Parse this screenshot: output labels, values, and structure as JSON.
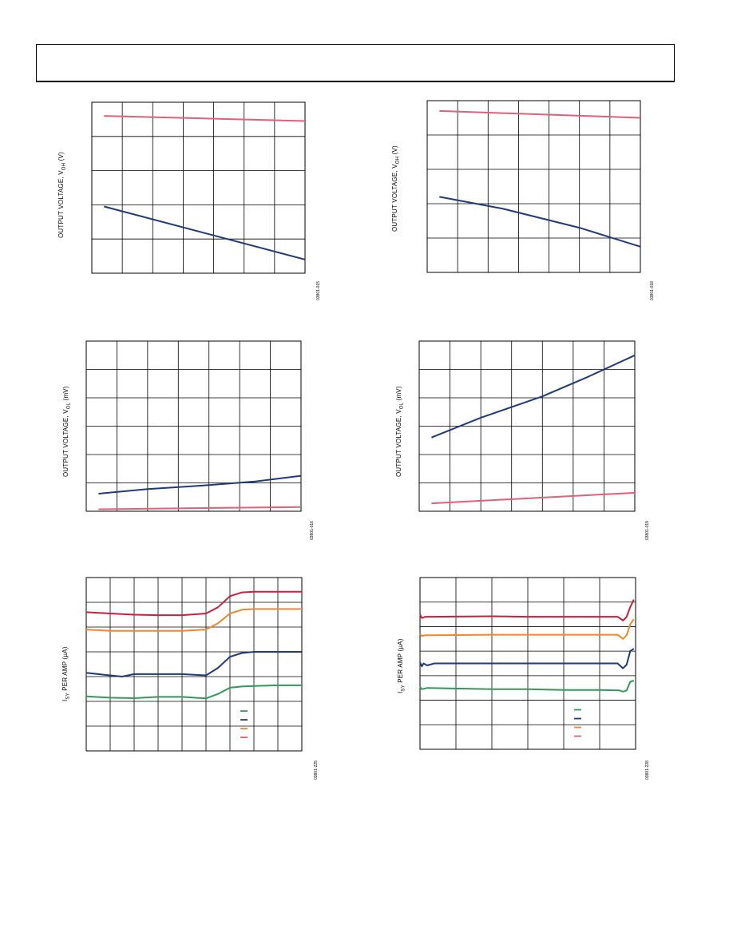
{
  "chart_data": [
    {
      "id": "c1",
      "type": "line",
      "ylabel_main": "OUTPUT VOLTAGE, V",
      "ylabel_sub": "OH",
      "ylabel_unit": " (V)",
      "fig_id": "03801-015",
      "ylim": [
        0,
        5
      ],
      "xlim": [
        0,
        7
      ],
      "grid": true,
      "vgrid": 7,
      "hgrid": 5,
      "series": [
        {
          "color": "#e0607a",
          "x": [
            0.4,
            7
          ],
          "y": [
            4.6,
            4.45
          ]
        },
        {
          "color": "#1f3a7a",
          "x": [
            0.4,
            7
          ],
          "y": [
            1.95,
            0.4
          ]
        }
      ]
    },
    {
      "id": "c2",
      "type": "line",
      "ylabel_main": "OUTPUT VOLTAGE, V",
      "ylabel_sub": "OH",
      "ylabel_unit": " (V)",
      "fig_id": "03801-018",
      "ylim": [
        0,
        5
      ],
      "xlim": [
        0,
        7
      ],
      "grid": true,
      "vgrid": 7,
      "hgrid": 5,
      "series": [
        {
          "color": "#e0607a",
          "x": [
            0.4,
            7
          ],
          "y": [
            4.7,
            4.5
          ]
        },
        {
          "color": "#1f3a7a",
          "x": [
            0.4,
            2.5,
            5,
            7
          ],
          "y": [
            2.2,
            1.85,
            1.3,
            0.75
          ]
        }
      ]
    },
    {
      "id": "c3",
      "type": "line",
      "ylabel_main": "OUTPUT VOLTAGE, V",
      "ylabel_sub": "OL",
      "ylabel_unit": " (mV)",
      "fig_id": "03801-016",
      "ylim": [
        0,
        6
      ],
      "xlim": [
        0,
        7
      ],
      "grid": true,
      "vgrid": 7,
      "hgrid": 6,
      "series": [
        {
          "color": "#e0607a",
          "x": [
            0.4,
            7
          ],
          "y": [
            0.07,
            0.15
          ]
        },
        {
          "color": "#1f3a7a",
          "x": [
            0.4,
            2,
            4,
            5.5,
            7
          ],
          "y": [
            0.62,
            0.78,
            0.92,
            1.05,
            1.25
          ]
        }
      ]
    },
    {
      "id": "c4",
      "type": "line",
      "ylabel_main": "OUTPUT VOLTAGE, V",
      "ylabel_sub": "OL",
      "ylabel_unit": " (mV)",
      "fig_id": "03801-019",
      "ylim": [
        0,
        6
      ],
      "xlim": [
        0,
        7
      ],
      "grid": true,
      "vgrid": 7,
      "hgrid": 6,
      "series": [
        {
          "color": "#e0607a",
          "x": [
            0.4,
            7
          ],
          "y": [
            0.28,
            0.65
          ]
        },
        {
          "color": "#1f3a7a",
          "x": [
            0.4,
            2,
            4,
            5.5,
            7
          ],
          "y": [
            2.6,
            3.3,
            4.05,
            4.75,
            5.5
          ]
        }
      ]
    },
    {
      "id": "c5",
      "type": "line",
      "ylabel_main": "I",
      "ylabel_sub": "SY",
      "ylabel_unit": " PER AMP (µA)",
      "fig_id": "03801-225",
      "ylim": [
        0,
        7
      ],
      "xlim": [
        0,
        9
      ],
      "grid": true,
      "vgrid": 9,
      "hgrid": 7,
      "series": [
        {
          "color": "#c8203c",
          "x": [
            0,
            1,
            2,
            3,
            4,
            5,
            5.5,
            6,
            6.5,
            7,
            8,
            9
          ],
          "y": [
            5.6,
            5.55,
            5.5,
            5.48,
            5.48,
            5.55,
            5.8,
            6.25,
            6.4,
            6.43,
            6.43,
            6.43
          ]
        },
        {
          "color": "#f0882a",
          "x": [
            0,
            1,
            2,
            3,
            4,
            5,
            5.5,
            6,
            6.5,
            7,
            8,
            9
          ],
          "y": [
            4.9,
            4.85,
            4.85,
            4.85,
            4.85,
            4.9,
            5.15,
            5.55,
            5.7,
            5.73,
            5.73,
            5.73
          ]
        },
        {
          "color": "#1f3a7a",
          "x": [
            0,
            1,
            1.5,
            2,
            3,
            4,
            5,
            5.5,
            6,
            6.5,
            7,
            8,
            9
          ],
          "y": [
            3.15,
            3.05,
            3.0,
            3.1,
            3.1,
            3.1,
            3.05,
            3.35,
            3.8,
            3.95,
            4.0,
            4.0,
            4.0
          ]
        },
        {
          "color": "#2f9a5a",
          "x": [
            0,
            1,
            2,
            3,
            4,
            5,
            5.5,
            6,
            6.5,
            7,
            8,
            9
          ],
          "y": [
            2.2,
            2.15,
            2.13,
            2.18,
            2.18,
            2.12,
            2.3,
            2.55,
            2.6,
            2.62,
            2.65,
            2.65
          ]
        }
      ],
      "legend": {
        "placement": "bottom-right",
        "colors": [
          "#2f9a5a",
          "#1f3a7a",
          "#f0882a",
          "#e0607a"
        ]
      }
    },
    {
      "id": "c6",
      "type": "line",
      "ylabel_main": "I",
      "ylabel_sub": "SY",
      "ylabel_unit": " PER AMP (µA)",
      "fig_id": "03801-228",
      "ylim": [
        0,
        7
      ],
      "xlim": [
        0,
        6
      ],
      "grid": true,
      "vgrid": 6,
      "hgrid": 7,
      "series": [
        {
          "color": "#c8203c",
          "x": [
            0,
            0.05,
            0.15,
            0.3,
            2,
            3,
            4,
            5,
            5.5,
            5.65,
            5.75,
            5.85,
            5.95
          ],
          "y": [
            5.5,
            5.35,
            5.4,
            5.4,
            5.42,
            5.4,
            5.4,
            5.4,
            5.4,
            5.25,
            5.4,
            5.8,
            6.1
          ]
        },
        {
          "color": "#f0882a",
          "x": [
            0,
            0.05,
            0.15,
            0.3,
            2,
            3,
            4,
            5,
            5.5,
            5.65,
            5.75,
            5.85,
            5.95
          ],
          "y": [
            4.7,
            4.62,
            4.65,
            4.65,
            4.67,
            4.67,
            4.67,
            4.67,
            4.67,
            4.5,
            4.65,
            5.1,
            5.3
          ]
        },
        {
          "color": "#1f3a7a",
          "x": [
            0,
            0.05,
            0.1,
            0.2,
            0.4,
            2,
            3,
            4,
            5,
            5.5,
            5.65,
            5.75,
            5.85,
            5.95
          ],
          "y": [
            3.55,
            3.38,
            3.5,
            3.42,
            3.5,
            3.5,
            3.5,
            3.5,
            3.5,
            3.5,
            3.3,
            3.45,
            4.0,
            4.1
          ]
        },
        {
          "color": "#2f9a5a",
          "x": [
            0,
            0.05,
            0.2,
            2,
            3,
            4,
            5,
            5.55,
            5.65,
            5.75,
            5.85,
            5.95
          ],
          "y": [
            2.55,
            2.45,
            2.5,
            2.45,
            2.45,
            2.42,
            2.42,
            2.4,
            2.35,
            2.4,
            2.75,
            2.8
          ]
        }
      ],
      "legend": {
        "placement": "bottom-right",
        "colors": [
          "#2f9a5a",
          "#1f3a7a",
          "#f0882a",
          "#e0607a"
        ]
      }
    }
  ]
}
